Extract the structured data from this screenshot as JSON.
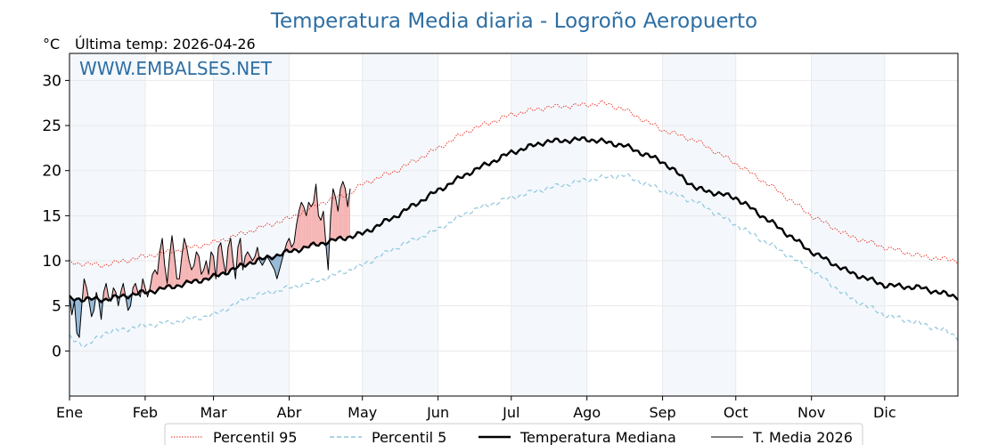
{
  "chart_data": {
    "type": "line",
    "title": "Temperatura Media diaria - Logroño Aeropuerto",
    "unit_label": "°C",
    "last_temp_text": "Última temp: 2026-04-26",
    "site_label": "WWW.EMBALSES.NET",
    "ylim": [
      -5,
      33
    ],
    "yticks": [
      0,
      5,
      10,
      15,
      20,
      25,
      30
    ],
    "xlim": [
      1,
      365
    ],
    "months": [
      {
        "label": "Ene",
        "day": 1
      },
      {
        "label": "Feb",
        "day": 32
      },
      {
        "label": "Mar",
        "day": 60
      },
      {
        "label": "Abr",
        "day": 91
      },
      {
        "label": "May",
        "day": 121
      },
      {
        "label": "Jun",
        "day": 152
      },
      {
        "label": "Jul",
        "day": 182
      },
      {
        "label": "Ago",
        "day": 213
      },
      {
        "label": "Sep",
        "day": 244
      },
      {
        "label": "Oct",
        "day": 274
      },
      {
        "label": "Nov",
        "day": 305
      },
      {
        "label": "Dic",
        "day": 335
      }
    ],
    "grid": true,
    "legend_position": "bottom",
    "series": [
      {
        "name": "Percentil 95",
        "color": "#e8291c",
        "style": "dotted",
        "x": [
          1,
          15,
          32,
          46,
          60,
          75,
          91,
          105,
          116,
          121,
          135,
          152,
          165,
          182,
          196,
          213,
          220,
          228,
          244,
          258,
          274,
          290,
          305,
          320,
          335,
          350,
          365
        ],
        "y": [
          9.8,
          9.5,
          10.5,
          11.2,
          12.0,
          13.3,
          14.7,
          16.5,
          17.5,
          18.5,
          20.0,
          22.5,
          24.5,
          26.2,
          27.0,
          27.3,
          27.5,
          26.8,
          24.5,
          23.3,
          20.8,
          18.0,
          15.0,
          12.8,
          11.5,
          10.5,
          10.0
        ]
      },
      {
        "name": "Percentil 5",
        "color": "#8fc6dd",
        "style": "dashed",
        "x": [
          1,
          8,
          15,
          32,
          46,
          60,
          75,
          91,
          105,
          121,
          135,
          152,
          165,
          182,
          196,
          213,
          228,
          244,
          258,
          274,
          290,
          305,
          320,
          335,
          350,
          360,
          365
        ],
        "y": [
          1.5,
          0.5,
          2.0,
          2.8,
          3.3,
          4.0,
          6.0,
          7.0,
          8.0,
          9.5,
          11.5,
          13.5,
          15.5,
          17.0,
          18.0,
          19.0,
          19.5,
          17.8,
          16.5,
          14.0,
          11.5,
          9.0,
          6.0,
          4.0,
          3.0,
          2.2,
          1.5
        ]
      },
      {
        "name": "Temperatura Mediana",
        "color": "#000000",
        "style": "solid-thick",
        "x": [
          1,
          15,
          32,
          46,
          60,
          75,
          91,
          105,
          121,
          135,
          152,
          165,
          182,
          196,
          213,
          220,
          228,
          244,
          258,
          274,
          290,
          305,
          320,
          335,
          350,
          360,
          365
        ],
        "y": [
          5.8,
          5.7,
          6.5,
          7.3,
          8.2,
          9.8,
          11.0,
          12.0,
          13.0,
          15.0,
          17.8,
          19.8,
          22.0,
          23.2,
          23.5,
          23.2,
          22.8,
          21.0,
          18.0,
          17.0,
          14.0,
          11.0,
          8.8,
          7.3,
          7.0,
          6.3,
          6.0
        ]
      },
      {
        "name": "T. Media 2026",
        "color": "#000000",
        "style": "solid-thin",
        "x": [
          1,
          2,
          3,
          4,
          5,
          6,
          7,
          8,
          9,
          10,
          11,
          12,
          13,
          14,
          15,
          16,
          17,
          18,
          19,
          20,
          21,
          22,
          23,
          24,
          25,
          26,
          27,
          28,
          29,
          30,
          31,
          32,
          33,
          34,
          35,
          36,
          37,
          38,
          39,
          40,
          41,
          42,
          43,
          44,
          45,
          46,
          47,
          48,
          49,
          50,
          51,
          52,
          53,
          54,
          55,
          56,
          57,
          58,
          59,
          60,
          61,
          62,
          63,
          64,
          65,
          66,
          67,
          68,
          69,
          70,
          71,
          72,
          73,
          74,
          75,
          76,
          77,
          78,
          79,
          80,
          81,
          82,
          83,
          84,
          85,
          86,
          87,
          88,
          89,
          90,
          91,
          92,
          93,
          94,
          95,
          96,
          97,
          98,
          99,
          100,
          101,
          102,
          103,
          104,
          105,
          106,
          107,
          108,
          109,
          110,
          111,
          112,
          113,
          114,
          115,
          116
        ],
        "y": [
          6.0,
          4.0,
          5.5,
          2.0,
          1.5,
          5.0,
          8.0,
          7.0,
          5.5,
          3.8,
          4.5,
          6.5,
          5.5,
          3.5,
          6.5,
          7.5,
          6.0,
          5.5,
          7.0,
          6.5,
          5.0,
          6.5,
          7.5,
          6.0,
          4.5,
          5.0,
          7.0,
          7.5,
          6.5,
          6.0,
          8.0,
          7.0,
          6.0,
          7.0,
          8.5,
          9.0,
          8.5,
          11.0,
          12.5,
          9.5,
          7.5,
          10.5,
          12.8,
          10.5,
          8.0,
          8.0,
          10.5,
          12.5,
          11.5,
          10.0,
          9.0,
          9.5,
          11.0,
          10.5,
          8.5,
          9.0,
          10.0,
          8.5,
          11.0,
          10.5,
          8.0,
          11.5,
          12.0,
          10.0,
          8.5,
          11.5,
          12.5,
          10.0,
          8.0,
          11.5,
          12.5,
          9.0,
          10.5,
          11.0,
          10.5,
          10.0,
          10.5,
          11.5,
          10.0,
          9.5,
          10.0,
          10.5,
          10.0,
          9.5,
          9.0,
          8.0,
          9.0,
          10.0,
          11.0,
          12.0,
          12.5,
          11.5,
          12.0,
          14.0,
          15.5,
          16.5,
          16.0,
          15.0,
          16.5,
          16.0,
          16.5,
          18.5,
          15.0,
          14.5,
          15.5,
          12.0,
          9.0,
          15.0,
          18.0,
          17.0,
          15.5,
          18.0,
          18.8,
          18.0,
          16.0,
          18.0
        ]
      }
    ]
  }
}
